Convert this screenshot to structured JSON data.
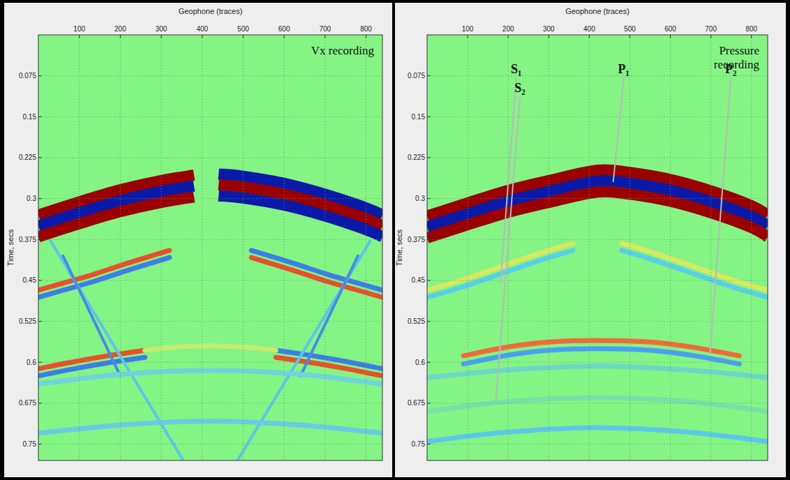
{
  "chart_data": [
    {
      "type": "line",
      "title": "Vx recording",
      "x_label": "Geophone (traces)",
      "y_label": "Time, secs",
      "xlim": [
        0,
        840
      ],
      "xticks": [
        100,
        200,
        300,
        400,
        500,
        600,
        700,
        800
      ],
      "ylim": [
        0,
        0.78
      ],
      "yticks": [
        0.075,
        0.15,
        0.225,
        0.3,
        0.375,
        0.45,
        0.525,
        0.6,
        0.675,
        0.75
      ],
      "grid": true,
      "series": [
        {
          "color": "#9a0000",
          "line_style": "thick",
          "x": [
            0,
            100,
            200,
            300,
            380
          ],
          "values": [
            0.33,
            0.306,
            0.284,
            0.267,
            0.257
          ]
        },
        {
          "color": "#0a1aa8",
          "line_style": "thick",
          "x": [
            0,
            100,
            200,
            300,
            380
          ],
          "values": [
            0.35,
            0.326,
            0.304,
            0.287,
            0.277
          ]
        },
        {
          "color": "#9a0000",
          "line_style": "thick",
          "x": [
            0,
            100,
            200,
            300,
            380
          ],
          "values": [
            0.37,
            0.346,
            0.324,
            0.307,
            0.297
          ]
        },
        {
          "color": "#0a1aa8",
          "line_style": "thick",
          "x": [
            440,
            500,
            600,
            700,
            800,
            840
          ],
          "values": [
            0.255,
            0.259,
            0.272,
            0.292,
            0.317,
            0.33
          ]
        },
        {
          "color": "#9a0000",
          "line_style": "thick",
          "x": [
            440,
            500,
            600,
            700,
            800,
            840
          ],
          "values": [
            0.275,
            0.279,
            0.292,
            0.312,
            0.337,
            0.35
          ]
        },
        {
          "color": "#0a1aa8",
          "line_style": "thick",
          "x": [
            440,
            500,
            600,
            700,
            800,
            840
          ],
          "values": [
            0.295,
            0.299,
            0.312,
            0.332,
            0.357,
            0.37
          ]
        },
        {
          "color": "#e8502a",
          "line_style": "solid",
          "x": [
            0,
            60,
            130,
            220,
            320
          ],
          "values": [
            0.468,
            0.455,
            0.44,
            0.418,
            0.395
          ]
        },
        {
          "color": "#3c7ee8",
          "line_style": "solid",
          "x": [
            0,
            60,
            130,
            220,
            320
          ],
          "values": [
            0.481,
            0.468,
            0.453,
            0.431,
            0.408
          ]
        },
        {
          "color": "#3c7ee8",
          "line_style": "solid",
          "x": [
            520,
            620,
            710,
            780,
            840
          ],
          "values": [
            0.395,
            0.418,
            0.44,
            0.455,
            0.468
          ]
        },
        {
          "color": "#e8502a",
          "line_style": "solid",
          "x": [
            520,
            620,
            710,
            780,
            840
          ],
          "values": [
            0.408,
            0.431,
            0.453,
            0.468,
            0.481
          ]
        },
        {
          "color": "#e8502a",
          "line_style": "solid",
          "x": [
            0,
            80,
            170,
            260
          ],
          "values": [
            0.612,
            0.6,
            0.588,
            0.578
          ]
        },
        {
          "color": "#3c7ee8",
          "line_style": "solid",
          "x": [
            0,
            80,
            170,
            260
          ],
          "values": [
            0.625,
            0.613,
            0.601,
            0.591
          ]
        },
        {
          "color": "#3c7ee8",
          "line_style": "solid",
          "x": [
            580,
            670,
            760,
            840
          ],
          "values": [
            0.578,
            0.588,
            0.6,
            0.612
          ]
        },
        {
          "color": "#e8502a",
          "line_style": "solid",
          "x": [
            580,
            670,
            760,
            840
          ],
          "values": [
            0.591,
            0.601,
            0.613,
            0.625
          ]
        },
        {
          "color": "#c4ec70",
          "line_style": "solid",
          "x": [
            260,
            340,
            420,
            500,
            580
          ],
          "values": [
            0.578,
            0.572,
            0.57,
            0.572,
            0.578
          ]
        },
        {
          "color": "#5cc6ea",
          "line_style": "thin",
          "x": [
            30,
            354
          ],
          "values": [
            0.378,
            0.78
          ]
        },
        {
          "color": "#5cc6ea",
          "line_style": "thin",
          "x": [
            810,
            486
          ],
          "values": [
            0.378,
            0.78
          ]
        },
        {
          "color": "#4a8ae6",
          "line_style": "thin",
          "x": [
            60,
            200
          ],
          "values": [
            0.405,
            0.625
          ]
        },
        {
          "color": "#4a8ae6",
          "line_style": "thin",
          "x": [
            780,
            640
          ],
          "values": [
            0.405,
            0.625
          ]
        },
        {
          "color": "#70d4dc",
          "line_style": "solid",
          "x": [
            0,
            200,
            420,
            640,
            840
          ],
          "values": [
            0.64,
            0.622,
            0.615,
            0.622,
            0.64
          ]
        },
        {
          "color": "#68cce4",
          "line_style": "solid",
          "x": [
            0,
            200,
            420,
            640,
            840
          ],
          "values": [
            0.73,
            0.715,
            0.708,
            0.715,
            0.73
          ]
        }
      ]
    },
    {
      "type": "line",
      "title": "Pressure recording",
      "x_label": "Geophone (traces)",
      "y_label": "Time, secs",
      "xlim": [
        0,
        840
      ],
      "xticks": [
        100,
        200,
        300,
        400,
        500,
        600,
        700,
        800
      ],
      "ylim": [
        0,
        0.78
      ],
      "yticks": [
        0.075,
        0.15,
        0.225,
        0.3,
        0.375,
        0.45,
        0.525,
        0.6,
        0.675,
        0.75
      ],
      "grid": true,
      "series": [
        {
          "color": "#9a0000",
          "line_style": "thick",
          "x": [
            0,
            100,
            200,
            300,
            420,
            500,
            600,
            700,
            800,
            840
          ],
          "values": [
            0.332,
            0.308,
            0.285,
            0.267,
            0.248,
            0.252,
            0.265,
            0.286,
            0.313,
            0.33
          ]
        },
        {
          "color": "#0a1aa8",
          "line_style": "thick",
          "x": [
            0,
            100,
            200,
            300,
            420,
            500,
            600,
            700,
            800,
            840
          ],
          "values": [
            0.352,
            0.328,
            0.305,
            0.287,
            0.268,
            0.272,
            0.285,
            0.306,
            0.333,
            0.35
          ]
        },
        {
          "color": "#9a0000",
          "line_style": "thick",
          "x": [
            0,
            100,
            200,
            300,
            420,
            500,
            600,
            700,
            800,
            840
          ],
          "values": [
            0.372,
            0.348,
            0.325,
            0.307,
            0.288,
            0.292,
            0.305,
            0.326,
            0.353,
            0.37
          ]
        },
        {
          "color": "#d8e860",
          "line_style": "solid",
          "x": [
            0,
            100,
            200,
            300,
            360
          ],
          "values": [
            0.468,
            0.446,
            0.42,
            0.395,
            0.382
          ]
        },
        {
          "color": "#58d0e8",
          "line_style": "solid",
          "x": [
            0,
            100,
            200,
            300,
            360
          ],
          "values": [
            0.481,
            0.459,
            0.433,
            0.408,
            0.395
          ]
        },
        {
          "color": "#d8e860",
          "line_style": "solid",
          "x": [
            480,
            540,
            640,
            740,
            840
          ],
          "values": [
            0.382,
            0.395,
            0.42,
            0.446,
            0.468
          ]
        },
        {
          "color": "#58d0e8",
          "line_style": "solid",
          "x": [
            480,
            540,
            640,
            740,
            840
          ],
          "values": [
            0.395,
            0.408,
            0.433,
            0.459,
            0.481
          ]
        },
        {
          "color": "#f06a3a",
          "line_style": "solid",
          "x": [
            90,
            200,
            300,
            420,
            550,
            650,
            770
          ],
          "values": [
            0.588,
            0.572,
            0.563,
            0.56,
            0.563,
            0.572,
            0.588
          ]
        },
        {
          "color": "#4aa0f0",
          "line_style": "solid",
          "x": [
            90,
            200,
            300,
            420,
            550,
            650,
            770
          ],
          "values": [
            0.603,
            0.587,
            0.578,
            0.575,
            0.578,
            0.587,
            0.603
          ]
        },
        {
          "color": "#6cd8c8",
          "line_style": "solid",
          "x": [
            0,
            200,
            420,
            640,
            840
          ],
          "values": [
            0.628,
            0.614,
            0.607,
            0.614,
            0.628
          ]
        },
        {
          "color": "#78e0a8",
          "line_style": "solid",
          "x": [
            0,
            200,
            420,
            640,
            840
          ],
          "values": [
            0.69,
            0.672,
            0.665,
            0.672,
            0.69
          ]
        },
        {
          "color": "#5cc8e8",
          "line_style": "solid",
          "x": [
            0,
            200,
            420,
            640,
            840
          ],
          "values": [
            0.745,
            0.728,
            0.72,
            0.728,
            0.745
          ]
        }
      ],
      "annotations": [
        {
          "text": "S₁",
          "x": 181,
          "y": 0.455,
          "text_x": 220,
          "text_y": 0.07
        },
        {
          "text": "S₂",
          "x": 169,
          "y": 0.675,
          "text_x": 229,
          "text_y": 0.105
        },
        {
          "text": "P₁",
          "x": 459,
          "y": 0.27,
          "text_x": 485,
          "text_y": 0.07
        },
        {
          "text": "P₂",
          "x": 698,
          "y": 0.585,
          "text_x": 749,
          "text_y": 0.07
        }
      ]
    }
  ]
}
